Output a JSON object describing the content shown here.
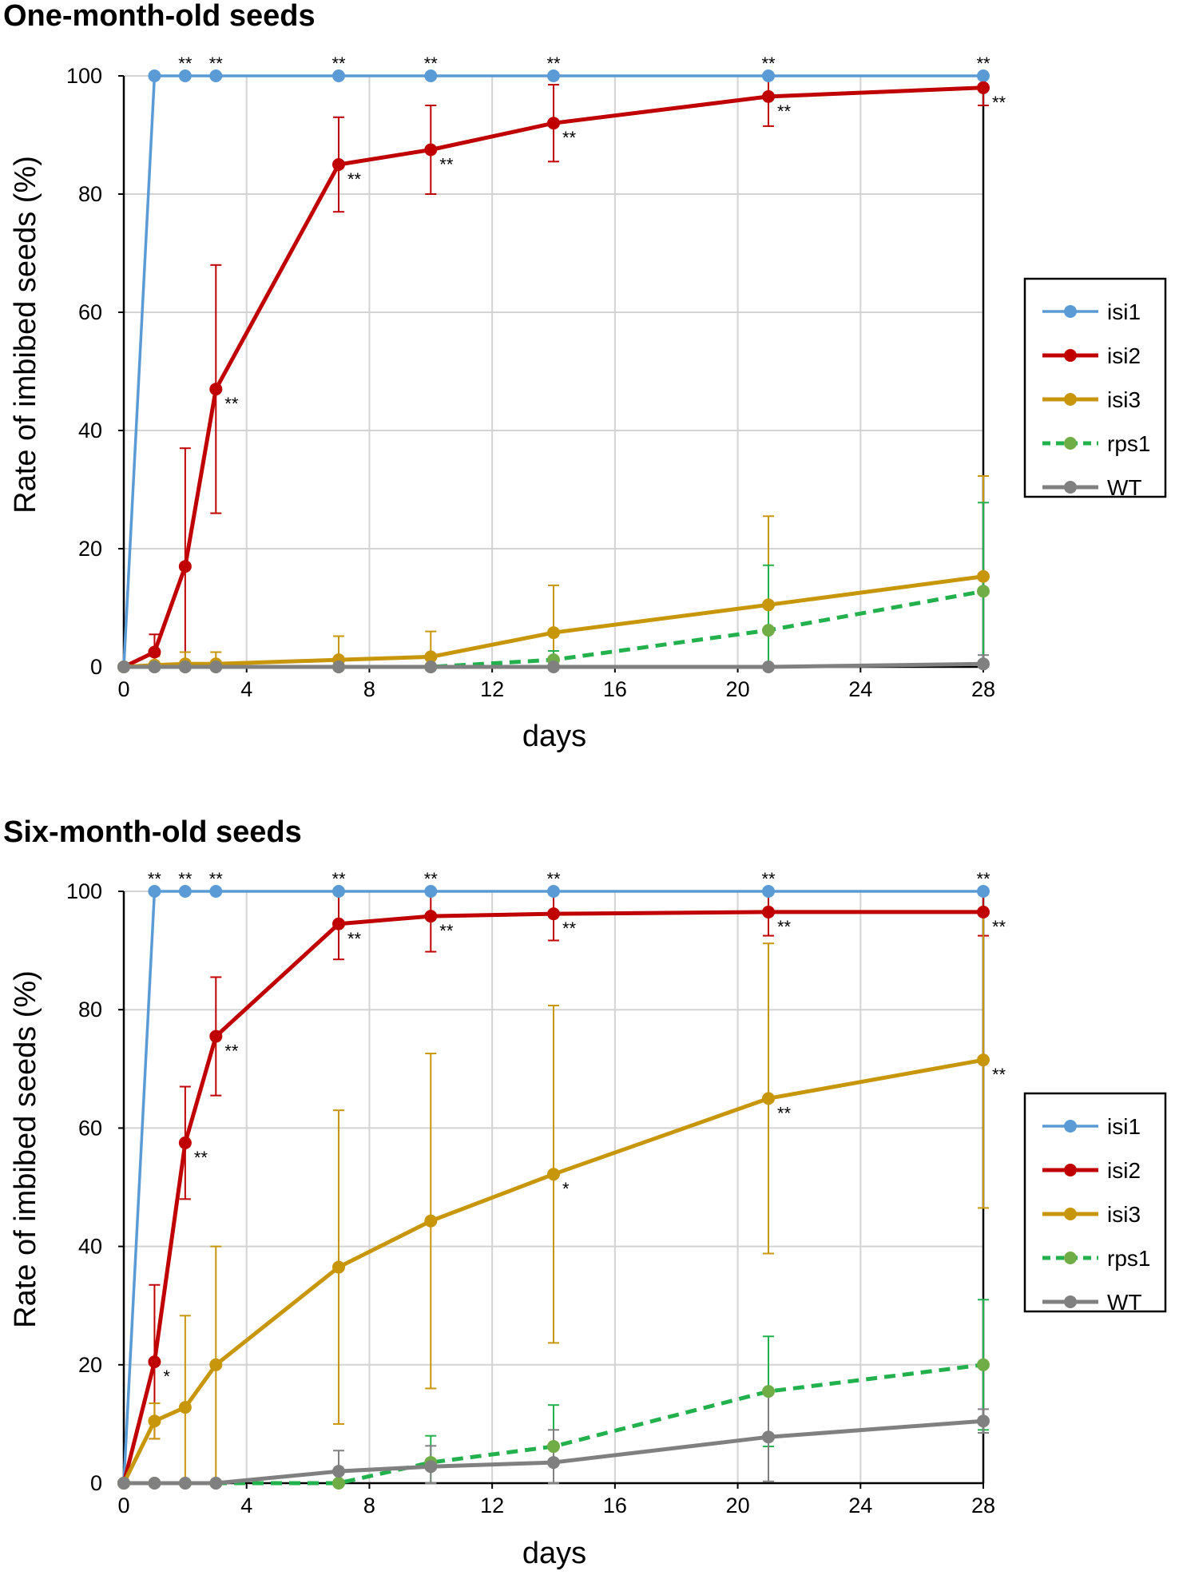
{
  "colors": {
    "isi1": "#5b9bd5",
    "isi2": "#c00000",
    "isi3": "#c8960a",
    "rps1": "#22b14c",
    "rps1_marker": "#70ad47",
    "WT": "#808080",
    "grid": "#d3d3d3"
  },
  "legend_order": [
    "isi1",
    "isi2",
    "isi3",
    "rps1",
    "WT"
  ],
  "chart_data": [
    {
      "type": "line",
      "title": "One-month-old seeds",
      "xlabel": "days",
      "ylabel": "Rate of imbibed seeds (%)",
      "xlim": [
        0,
        28
      ],
      "ylim": [
        0,
        100
      ],
      "xticks": [
        "0",
        "4",
        "8",
        "12",
        "16",
        "20",
        "24",
        "28"
      ],
      "yticks": [
        "0",
        "20",
        "40",
        "60",
        "80",
        "100"
      ],
      "x": [
        0,
        1,
        2,
        3,
        7,
        10,
        14,
        21,
        28
      ],
      "series": [
        {
          "name": "isi1",
          "style": "solid",
          "values": [
            0,
            100,
            100,
            100,
            100,
            100,
            100,
            100,
            100
          ],
          "err": [
            0,
            0,
            0,
            0,
            0,
            0,
            0,
            0,
            0
          ],
          "sig": [
            "",
            "",
            "**",
            "**",
            "**",
            "**",
            "**",
            "**",
            "**"
          ],
          "sig_pos": "above"
        },
        {
          "name": "isi2",
          "style": "solid",
          "values": [
            0,
            2.5,
            17,
            47,
            85,
            87.5,
            92,
            96.5,
            98
          ],
          "err": [
            0,
            3,
            20,
            21,
            8,
            7.5,
            6.5,
            5,
            3
          ],
          "sig": [
            "",
            "",
            "",
            "**",
            "**",
            "**",
            "**",
            "**",
            "**"
          ],
          "sig_pos": "right"
        },
        {
          "name": "isi3",
          "style": "solid",
          "values": [
            0,
            0.3,
            0.5,
            0.5,
            1.2,
            1.7,
            5.8,
            10.5,
            15.3
          ],
          "err": [
            0,
            1.5,
            2,
            2,
            4,
            4.3,
            8,
            15,
            17
          ],
          "sig": [
            "",
            "",
            "",
            "",
            "",
            "",
            "",
            "",
            ""
          ],
          "sig_pos": "right"
        },
        {
          "name": "rps1",
          "style": "dashed",
          "values": [
            0,
            0,
            0,
            0,
            0,
            0,
            1.2,
            6.2,
            12.8
          ],
          "err": [
            0,
            0,
            0,
            0,
            0,
            0,
            1.5,
            11,
            15
          ],
          "sig": [
            "",
            "",
            "",
            "",
            "",
            "",
            "",
            "",
            ""
          ],
          "sig_pos": "right"
        },
        {
          "name": "WT",
          "style": "solid",
          "values": [
            0,
            0,
            0,
            0,
            0,
            0,
            0,
            0,
            0.5
          ],
          "err": [
            0,
            0,
            0,
            0,
            0,
            0,
            0,
            0,
            1.5
          ],
          "sig": [
            "",
            "",
            "",
            "",
            "",
            "",
            "",
            "",
            ""
          ],
          "sig_pos": "right"
        }
      ]
    },
    {
      "type": "line",
      "title": "Six-month-old seeds",
      "xlabel": "days",
      "ylabel": "Rate of imbibed seeds (%)",
      "xlim": [
        0,
        28
      ],
      "ylim": [
        0,
        100
      ],
      "xticks": [
        "0",
        "4",
        "8",
        "12",
        "16",
        "20",
        "24",
        "28"
      ],
      "yticks": [
        "0",
        "20",
        "40",
        "60",
        "80",
        "100"
      ],
      "x": [
        0,
        1,
        2,
        3,
        7,
        10,
        14,
        21,
        28
      ],
      "series": [
        {
          "name": "isi1",
          "style": "solid",
          "values": [
            0,
            100,
            100,
            100,
            100,
            100,
            100,
            100,
            100
          ],
          "err": [
            0,
            0,
            0,
            0,
            0,
            0,
            0,
            0,
            0
          ],
          "sig": [
            "",
            "**",
            "**",
            "**",
            "**",
            "**",
            "**",
            "**",
            "**"
          ],
          "sig_pos": "above"
        },
        {
          "name": "isi2",
          "style": "solid",
          "values": [
            0,
            20.5,
            57.5,
            75.5,
            94.5,
            95.8,
            96.2,
            96.5,
            96.5
          ],
          "err": [
            0,
            13,
            9.5,
            10,
            6,
            6,
            4.5,
            4,
            4
          ],
          "sig": [
            "",
            "*",
            "**",
            "**",
            "**",
            "**",
            "**",
            "**",
            "**"
          ],
          "sig_pos": "right"
        },
        {
          "name": "isi3",
          "style": "solid",
          "values": [
            0,
            10.5,
            12.8,
            20,
            36.5,
            44.3,
            52.2,
            65,
            71.5
          ],
          "err": [
            0,
            3,
            15.5,
            20,
            26.5,
            28.3,
            28.5,
            26.2,
            25
          ],
          "sig": [
            "",
            "",
            "",
            "",
            "",
            "",
            "*",
            "**",
            "**"
          ],
          "sig_pos": "right"
        },
        {
          "name": "rps1",
          "style": "dashed",
          "values": [
            0,
            0,
            0,
            0,
            0,
            3.5,
            6.2,
            15.5,
            20
          ],
          "err": [
            0,
            0,
            0,
            0,
            0,
            4.5,
            7,
            9.3,
            11
          ],
          "sig": [
            "",
            "",
            "",
            "",
            "",
            "",
            "",
            "",
            ""
          ],
          "sig_pos": "right"
        },
        {
          "name": "WT",
          "style": "solid",
          "values": [
            0,
            0,
            0,
            0,
            2,
            2.8,
            3.5,
            7.8,
            10.5
          ],
          "err": [
            0,
            0,
            0,
            0,
            3.5,
            3.5,
            5.5,
            7.5,
            2
          ],
          "sig": [
            "",
            "",
            "",
            "",
            "",
            "",
            "",
            "",
            ""
          ],
          "sig_pos": "right"
        }
      ]
    }
  ]
}
